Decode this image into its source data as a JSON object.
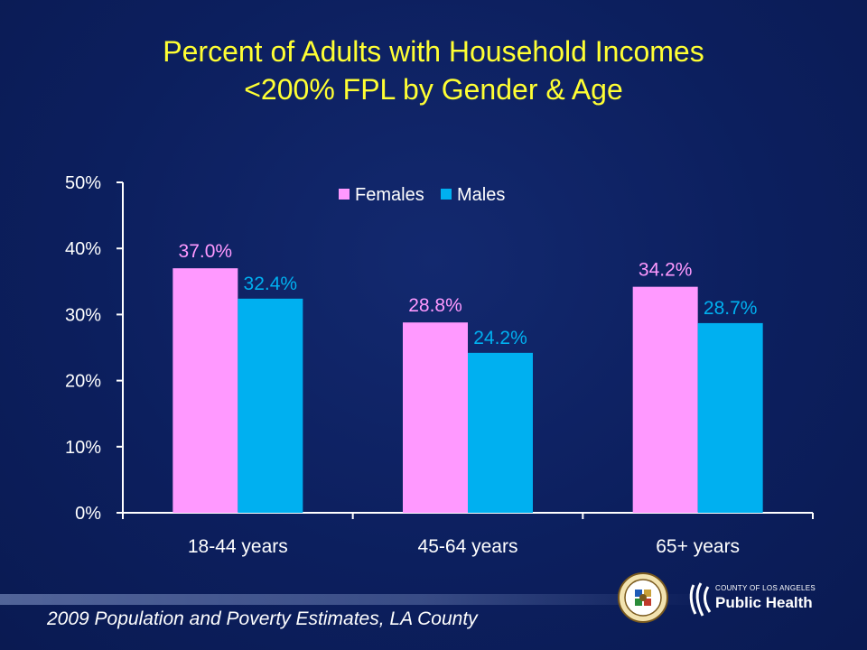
{
  "header": {
    "title_line1": "Percent of Adults with Household Incomes",
    "title_line2": "<200% FPL by Gender & Age"
  },
  "footer": {
    "source": "2009 Population and Poverty Estimates, LA County",
    "logo_small": "COUNTY OF LOS ANGELES",
    "logo_big": "Public Health",
    "seal_name": "county-seal-icon"
  },
  "chart_data": {
    "type": "bar",
    "categories": [
      "18-44 years",
      "45-64 years",
      "65+ years"
    ],
    "series": [
      {
        "name": "Females",
        "values": [
          37.0,
          28.8,
          34.2
        ],
        "labels": [
          "37.0%",
          "28.8%",
          "34.2%"
        ],
        "color": "#ff99ff"
      },
      {
        "name": "Males",
        "values": [
          32.4,
          24.2,
          28.7
        ],
        "labels": [
          "32.4%",
          "24.2%",
          "28.7%"
        ],
        "color": "#00b0f0"
      }
    ],
    "ylim": [
      0,
      50
    ],
    "yticks": [
      0,
      10,
      20,
      30,
      40,
      50
    ],
    "ytick_labels": [
      "0%",
      "10%",
      "20%",
      "30%",
      "40%",
      "50%"
    ],
    "legend": "top-center",
    "grid": false,
    "colors": {
      "axis": "#ffffff",
      "text": "#ffffff",
      "title": "#ffff33",
      "background": "#0c1f5e"
    }
  }
}
